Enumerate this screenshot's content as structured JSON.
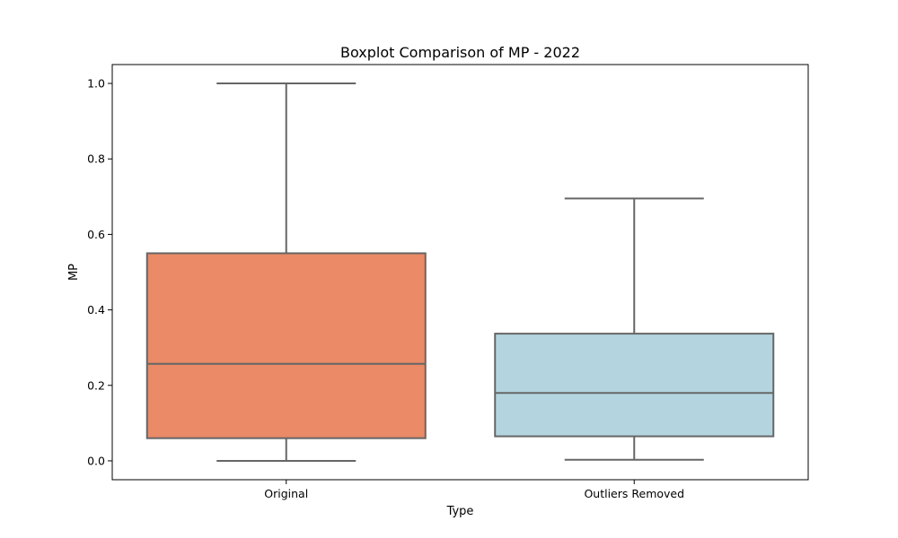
{
  "chart_data": {
    "type": "boxplot",
    "title": "Boxplot Comparison of MP - 2022",
    "xlabel": "Type",
    "ylabel": "MP",
    "categories": [
      "Original",
      "Outliers Removed"
    ],
    "ylim": [
      -0.05,
      1.05
    ],
    "yticks": [
      0.0,
      0.2,
      0.4,
      0.6,
      0.8,
      1.0
    ],
    "ytick_labels": [
      "0.0",
      "0.2",
      "0.4",
      "0.6",
      "0.8",
      "1.0"
    ],
    "grid": false,
    "legend": "none",
    "boxes": [
      {
        "category": "Original",
        "whisker_low": 0.0,
        "q1": 0.06,
        "median": 0.257,
        "q3": 0.55,
        "whisker_high": 1.0,
        "color": "#EA8A67"
      },
      {
        "category": "Outliers Removed",
        "whisker_low": 0.003,
        "q1": 0.065,
        "median": 0.18,
        "q3": 0.337,
        "whisker_high": 0.695,
        "color": "#B4D5DF"
      }
    ],
    "line_color": "#666666"
  }
}
